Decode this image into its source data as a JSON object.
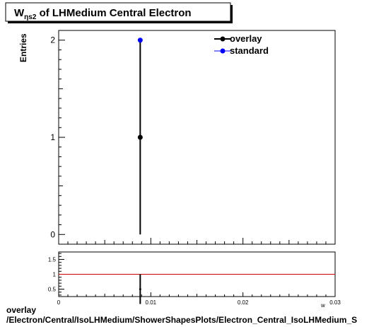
{
  "title": {
    "main": "W",
    "subscript": "ηs2",
    "rest": " of LHMedium Central  Electron"
  },
  "footer": {
    "line1": "overlay",
    "line2": "/Electron/Central/IsoLHMedium/ShowerShapesPlots/Electron_Central_IsoLHMedium_S"
  },
  "colors": {
    "overlay": "#000000",
    "standard": "#0000ff",
    "ratio_line": "#cc0000"
  },
  "chart_data": [
    {
      "type": "scatter",
      "ylabel": "Entries",
      "xlim": [
        0,
        0.03
      ],
      "ylim": [
        -0.1,
        2.1
      ],
      "y_ticks": [
        "0",
        "1",
        "2"
      ],
      "legend_position": "top-right",
      "series": [
        {
          "name": "overlay",
          "color": "#000000",
          "x": [
            0.00885
          ],
          "y": [
            1
          ],
          "yerr": [
            1
          ]
        },
        {
          "name": "standard",
          "color": "#0000ff",
          "x": [
            0.00885
          ],
          "y": [
            2
          ],
          "yerr": [
            0
          ]
        }
      ]
    },
    {
      "type": "scatter",
      "xlabel": "w",
      "xlim": [
        0,
        0.03
      ],
      "ylim": [
        0.25,
        1.75
      ],
      "x_ticks": [
        "0",
        "0.01",
        "0.02",
        "0.03"
      ],
      "y_ticks": [
        "0.5",
        "1",
        "1.5"
      ],
      "reference_line": 1,
      "series": [
        {
          "name": "",
          "color": "#000000",
          "x": [
            0.00885
          ],
          "y": [
            0.5
          ],
          "yerr": [
            0.5
          ]
        }
      ]
    }
  ]
}
